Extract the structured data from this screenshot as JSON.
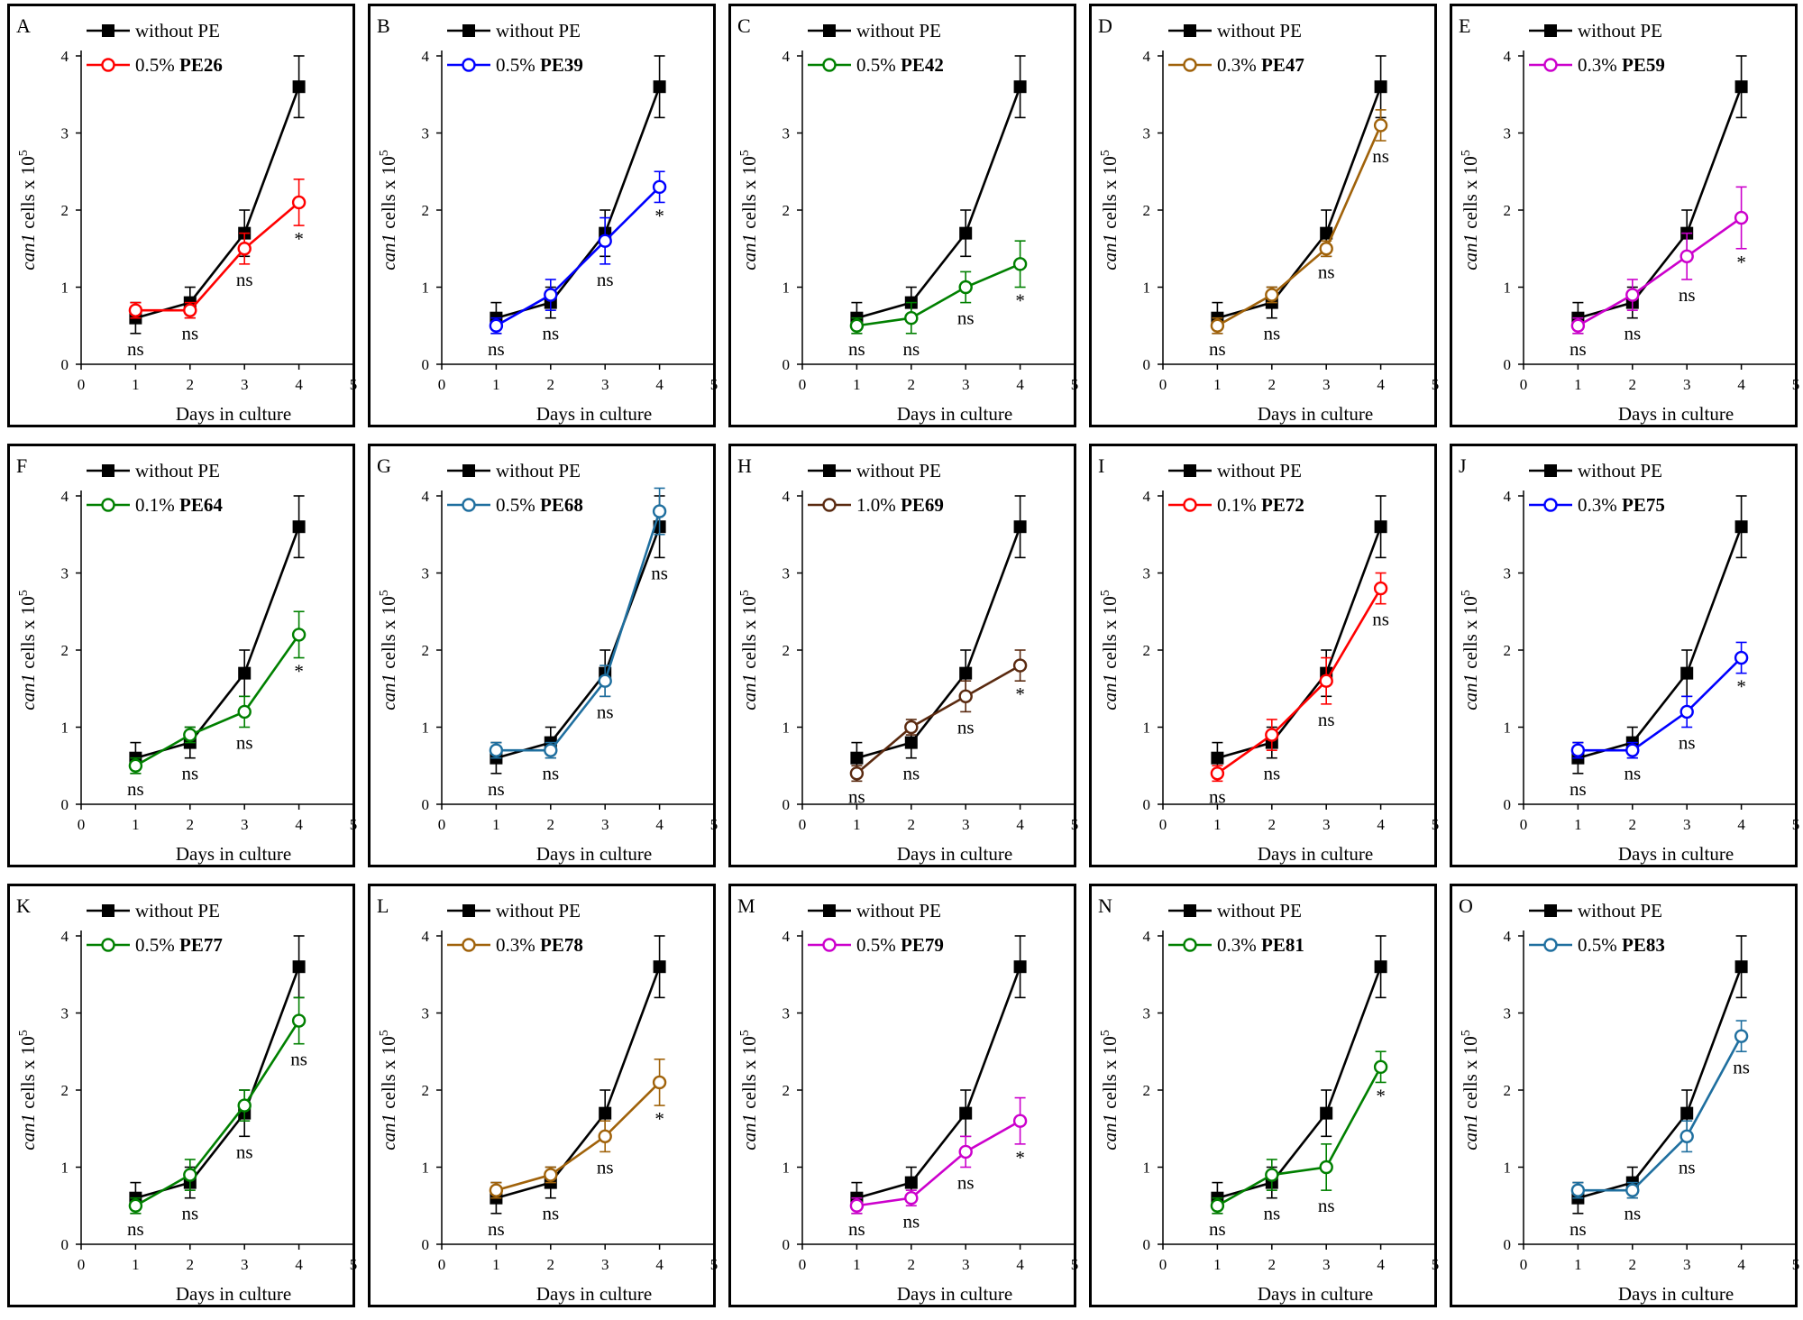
{
  "common": {
    "xlabel": "Days in culture",
    "ylabel_italic": "can1",
    "ylabel_rest": " cells x 10",
    "ylabel_exp": "5",
    "control_name": "without PE",
    "control_color": "#000000",
    "xlim": [
      0,
      5
    ],
    "ylim": [
      0,
      4
    ],
    "x_ticks": [
      "0",
      "1",
      "2",
      "3",
      "4",
      "5"
    ],
    "y_ticks": [
      "0",
      "1",
      "2",
      "3",
      "4"
    ]
  },
  "chart_data": [
    {
      "type": "line",
      "panel_label": "A",
      "series": [
        {
          "name": "without PE",
          "marker": "filled-square",
          "color": "#000000",
          "x": [
            1,
            2,
            3,
            4
          ],
          "y": [
            0.6,
            0.8,
            1.7,
            3.6
          ],
          "err": [
            0.2,
            0.2,
            0.3,
            0.4
          ]
        },
        {
          "name_prefix": "0.5%",
          "name_bold": "PE26",
          "marker": "open-circle",
          "color": "#ff0000",
          "x": [
            1,
            2,
            3,
            4
          ],
          "y": [
            0.7,
            0.7,
            1.5,
            2.1
          ],
          "err": [
            0.1,
            0.1,
            0.2,
            0.3
          ]
        }
      ],
      "annotations": [
        {
          "x": 1,
          "text": "ns"
        },
        {
          "x": 2,
          "text": "ns"
        },
        {
          "x": 3,
          "text": "ns"
        },
        {
          "x": 4,
          "text": "*"
        }
      ]
    },
    {
      "type": "line",
      "panel_label": "B",
      "series": [
        {
          "name": "without PE",
          "marker": "filled-square",
          "color": "#000000",
          "x": [
            1,
            2,
            3,
            4
          ],
          "y": [
            0.6,
            0.8,
            1.7,
            3.6
          ],
          "err": [
            0.2,
            0.2,
            0.3,
            0.4
          ]
        },
        {
          "name_prefix": "0.5%",
          "name_bold": "PE39",
          "marker": "open-circle",
          "color": "#0000ff",
          "x": [
            1,
            2,
            3,
            4
          ],
          "y": [
            0.5,
            0.9,
            1.6,
            2.3
          ],
          "err": [
            0.1,
            0.2,
            0.3,
            0.2
          ]
        }
      ],
      "annotations": [
        {
          "x": 1,
          "text": "ns"
        },
        {
          "x": 2,
          "text": "ns"
        },
        {
          "x": 3,
          "text": "ns"
        },
        {
          "x": 4,
          "text": "*"
        }
      ]
    },
    {
      "type": "line",
      "panel_label": "C",
      "series": [
        {
          "name": "without PE",
          "marker": "filled-square",
          "color": "#000000",
          "x": [
            1,
            2,
            3,
            4
          ],
          "y": [
            0.6,
            0.8,
            1.7,
            3.6
          ],
          "err": [
            0.2,
            0.2,
            0.3,
            0.4
          ]
        },
        {
          "name_prefix": "0.5%",
          "name_bold": "PE42",
          "marker": "open-circle",
          "color": "#008000",
          "x": [
            1,
            2,
            3,
            4
          ],
          "y": [
            0.5,
            0.6,
            1.0,
            1.3
          ],
          "err": [
            0.1,
            0.2,
            0.2,
            0.3
          ]
        }
      ],
      "annotations": [
        {
          "x": 1,
          "text": "ns"
        },
        {
          "x": 2,
          "text": "ns"
        },
        {
          "x": 3,
          "text": "ns"
        },
        {
          "x": 4,
          "text": "*"
        }
      ]
    },
    {
      "type": "line",
      "panel_label": "D",
      "series": [
        {
          "name": "without PE",
          "marker": "filled-square",
          "color": "#000000",
          "x": [
            1,
            2,
            3,
            4
          ],
          "y": [
            0.6,
            0.8,
            1.7,
            3.6
          ],
          "err": [
            0.2,
            0.2,
            0.3,
            0.4
          ]
        },
        {
          "name_prefix": "0.3%",
          "name_bold": "PE47",
          "marker": "open-circle",
          "color": "#a0620a",
          "x": [
            1,
            2,
            3,
            4
          ],
          "y": [
            0.5,
            0.9,
            1.5,
            3.1
          ],
          "err": [
            0.1,
            0.1,
            0.1,
            0.2
          ]
        }
      ],
      "annotations": [
        {
          "x": 1,
          "text": "ns"
        },
        {
          "x": 2,
          "text": "ns"
        },
        {
          "x": 3,
          "text": "ns"
        },
        {
          "x": 4,
          "text": "ns"
        }
      ]
    },
    {
      "type": "line",
      "panel_label": "E",
      "series": [
        {
          "name": "without PE",
          "marker": "filled-square",
          "color": "#000000",
          "x": [
            1,
            2,
            3,
            4
          ],
          "y": [
            0.6,
            0.8,
            1.7,
            3.6
          ],
          "err": [
            0.2,
            0.2,
            0.3,
            0.4
          ]
        },
        {
          "name_prefix": "0.3%",
          "name_bold": "PE59",
          "marker": "open-circle",
          "color": "#cc00cc",
          "x": [
            1,
            2,
            3,
            4
          ],
          "y": [
            0.5,
            0.9,
            1.4,
            1.9
          ],
          "err": [
            0.1,
            0.2,
            0.3,
            0.4
          ]
        }
      ],
      "annotations": [
        {
          "x": 1,
          "text": "ns"
        },
        {
          "x": 2,
          "text": "ns"
        },
        {
          "x": 3,
          "text": "ns"
        },
        {
          "x": 4,
          "text": "*"
        }
      ]
    },
    {
      "type": "line",
      "panel_label": "F",
      "series": [
        {
          "name": "without PE",
          "marker": "filled-square",
          "color": "#000000",
          "x": [
            1,
            2,
            3,
            4
          ],
          "y": [
            0.6,
            0.8,
            1.7,
            3.6
          ],
          "err": [
            0.2,
            0.2,
            0.3,
            0.4
          ]
        },
        {
          "name_prefix": "0.1%",
          "name_bold": "PE64",
          "marker": "open-circle",
          "color": "#008000",
          "x": [
            1,
            2,
            3,
            4
          ],
          "y": [
            0.5,
            0.9,
            1.2,
            2.2
          ],
          "err": [
            0.1,
            0.1,
            0.2,
            0.3
          ]
        }
      ],
      "annotations": [
        {
          "x": 1,
          "text": "ns"
        },
        {
          "x": 2,
          "text": "ns"
        },
        {
          "x": 3,
          "text": "ns"
        },
        {
          "x": 4,
          "text": "*"
        }
      ]
    },
    {
      "type": "line",
      "panel_label": "G",
      "series": [
        {
          "name": "without PE",
          "marker": "filled-square",
          "color": "#000000",
          "x": [
            1,
            2,
            3,
            4
          ],
          "y": [
            0.6,
            0.8,
            1.7,
            3.6
          ],
          "err": [
            0.2,
            0.2,
            0.3,
            0.4
          ]
        },
        {
          "name_prefix": "0.5%",
          "name_bold": "PE68",
          "marker": "open-circle",
          "color": "#1f6f9f",
          "x": [
            1,
            2,
            3,
            4
          ],
          "y": [
            0.7,
            0.7,
            1.6,
            3.8
          ],
          "err": [
            0.1,
            0.1,
            0.2,
            0.3
          ]
        }
      ],
      "annotations": [
        {
          "x": 1,
          "text": "ns"
        },
        {
          "x": 2,
          "text": "ns"
        },
        {
          "x": 3,
          "text": "ns"
        },
        {
          "x": 4,
          "text": "ns"
        }
      ]
    },
    {
      "type": "line",
      "panel_label": "H",
      "series": [
        {
          "name": "without PE",
          "marker": "filled-square",
          "color": "#000000",
          "x": [
            1,
            2,
            3,
            4
          ],
          "y": [
            0.6,
            0.8,
            1.7,
            3.6
          ],
          "err": [
            0.2,
            0.2,
            0.3,
            0.4
          ]
        },
        {
          "name_prefix": "1.0%",
          "name_bold": "PE69",
          "marker": "open-circle",
          "color": "#5a2a10",
          "x": [
            1,
            2,
            3,
            4
          ],
          "y": [
            0.4,
            1.0,
            1.4,
            1.8
          ],
          "err": [
            0.1,
            0.1,
            0.2,
            0.2
          ]
        }
      ],
      "annotations": [
        {
          "x": 1,
          "text": "ns"
        },
        {
          "x": 2,
          "text": "ns"
        },
        {
          "x": 3,
          "text": "ns"
        },
        {
          "x": 4,
          "text": "*"
        }
      ]
    },
    {
      "type": "line",
      "panel_label": "I",
      "series": [
        {
          "name": "without PE",
          "marker": "filled-square",
          "color": "#000000",
          "x": [
            1,
            2,
            3,
            4
          ],
          "y": [
            0.6,
            0.8,
            1.7,
            3.6
          ],
          "err": [
            0.2,
            0.2,
            0.3,
            0.4
          ]
        },
        {
          "name_prefix": "0.1%",
          "name_bold": "PE72",
          "marker": "open-circle",
          "color": "#ff0000",
          "x": [
            1,
            2,
            3,
            4
          ],
          "y": [
            0.4,
            0.9,
            1.6,
            2.8
          ],
          "err": [
            0.1,
            0.2,
            0.3,
            0.2
          ]
        }
      ],
      "annotations": [
        {
          "x": 1,
          "text": "ns"
        },
        {
          "x": 2,
          "text": "ns"
        },
        {
          "x": 3,
          "text": "ns"
        },
        {
          "x": 4,
          "text": "ns"
        }
      ]
    },
    {
      "type": "line",
      "panel_label": "J",
      "series": [
        {
          "name": "without PE",
          "marker": "filled-square",
          "color": "#000000",
          "x": [
            1,
            2,
            3,
            4
          ],
          "y": [
            0.6,
            0.8,
            1.7,
            3.6
          ],
          "err": [
            0.2,
            0.2,
            0.3,
            0.4
          ]
        },
        {
          "name_prefix": "0.3%",
          "name_bold": "PE75",
          "marker": "open-circle",
          "color": "#0000ff",
          "x": [
            1,
            2,
            3,
            4
          ],
          "y": [
            0.7,
            0.7,
            1.2,
            1.9
          ],
          "err": [
            0.1,
            0.1,
            0.2,
            0.2
          ]
        }
      ],
      "annotations": [
        {
          "x": 1,
          "text": "ns"
        },
        {
          "x": 2,
          "text": "ns"
        },
        {
          "x": 3,
          "text": "ns"
        },
        {
          "x": 4,
          "text": "*"
        }
      ]
    },
    {
      "type": "line",
      "panel_label": "K",
      "series": [
        {
          "name": "without PE",
          "marker": "filled-square",
          "color": "#000000",
          "x": [
            1,
            2,
            3,
            4
          ],
          "y": [
            0.6,
            0.8,
            1.7,
            3.6
          ],
          "err": [
            0.2,
            0.2,
            0.3,
            0.4
          ]
        },
        {
          "name_prefix": "0.5%",
          "name_bold": "PE77",
          "marker": "open-circle",
          "color": "#008000",
          "x": [
            1,
            2,
            3,
            4
          ],
          "y": [
            0.5,
            0.9,
            1.8,
            2.9
          ],
          "err": [
            0.1,
            0.2,
            0.2,
            0.3
          ]
        }
      ],
      "annotations": [
        {
          "x": 1,
          "text": "ns"
        },
        {
          "x": 2,
          "text": "ns"
        },
        {
          "x": 3,
          "text": "ns"
        },
        {
          "x": 4,
          "text": "ns"
        }
      ]
    },
    {
      "type": "line",
      "panel_label": "L",
      "series": [
        {
          "name": "without PE",
          "marker": "filled-square",
          "color": "#000000",
          "x": [
            1,
            2,
            3,
            4
          ],
          "y": [
            0.6,
            0.8,
            1.7,
            3.6
          ],
          "err": [
            0.2,
            0.2,
            0.3,
            0.4
          ]
        },
        {
          "name_prefix": "0.3%",
          "name_bold": "PE78",
          "marker": "open-circle",
          "color": "#a0620a",
          "x": [
            1,
            2,
            3,
            4
          ],
          "y": [
            0.7,
            0.9,
            1.4,
            2.1
          ],
          "err": [
            0.1,
            0.1,
            0.2,
            0.3
          ]
        }
      ],
      "annotations": [
        {
          "x": 1,
          "text": "ns"
        },
        {
          "x": 2,
          "text": "ns"
        },
        {
          "x": 3,
          "text": "ns"
        },
        {
          "x": 4,
          "text": "*"
        }
      ]
    },
    {
      "type": "line",
      "panel_label": "M",
      "series": [
        {
          "name": "without PE",
          "marker": "filled-square",
          "color": "#000000",
          "x": [
            1,
            2,
            3,
            4
          ],
          "y": [
            0.6,
            0.8,
            1.7,
            3.6
          ],
          "err": [
            0.2,
            0.2,
            0.3,
            0.4
          ]
        },
        {
          "name_prefix": "0.5%",
          "name_bold": "PE79",
          "marker": "open-circle",
          "color": "#cc00cc",
          "x": [
            1,
            2,
            3,
            4
          ],
          "y": [
            0.5,
            0.6,
            1.2,
            1.6
          ],
          "err": [
            0.1,
            0.1,
            0.2,
            0.3
          ]
        }
      ],
      "annotations": [
        {
          "x": 1,
          "text": "ns"
        },
        {
          "x": 2,
          "text": "ns"
        },
        {
          "x": 3,
          "text": "ns"
        },
        {
          "x": 4,
          "text": "*"
        }
      ]
    },
    {
      "type": "line",
      "panel_label": "N",
      "series": [
        {
          "name": "without PE",
          "marker": "filled-square",
          "color": "#000000",
          "x": [
            1,
            2,
            3,
            4
          ],
          "y": [
            0.6,
            0.8,
            1.7,
            3.6
          ],
          "err": [
            0.2,
            0.2,
            0.3,
            0.4
          ]
        },
        {
          "name_prefix": "0.3%",
          "name_bold": "PE81",
          "marker": "open-circle",
          "color": "#008000",
          "x": [
            1,
            2,
            3,
            4
          ],
          "y": [
            0.5,
            0.9,
            1.0,
            2.3
          ],
          "err": [
            0.1,
            0.2,
            0.3,
            0.2
          ]
        }
      ],
      "annotations": [
        {
          "x": 1,
          "text": "ns"
        },
        {
          "x": 2,
          "text": "ns"
        },
        {
          "x": 3,
          "text": "ns"
        },
        {
          "x": 4,
          "text": "*"
        }
      ]
    },
    {
      "type": "line",
      "panel_label": "O",
      "series": [
        {
          "name": "without PE",
          "marker": "filled-square",
          "color": "#000000",
          "x": [
            1,
            2,
            3,
            4
          ],
          "y": [
            0.6,
            0.8,
            1.7,
            3.6
          ],
          "err": [
            0.2,
            0.2,
            0.3,
            0.4
          ]
        },
        {
          "name_prefix": "0.5%",
          "name_bold": "PE83",
          "marker": "open-circle",
          "color": "#1f6f9f",
          "x": [
            1,
            2,
            3,
            4
          ],
          "y": [
            0.7,
            0.7,
            1.4,
            2.7
          ],
          "err": [
            0.1,
            0.1,
            0.2,
            0.2
          ]
        }
      ],
      "annotations": [
        {
          "x": 1,
          "text": "ns"
        },
        {
          "x": 2,
          "text": "ns"
        },
        {
          "x": 3,
          "text": "ns"
        },
        {
          "x": 4,
          "text": "ns"
        }
      ]
    }
  ]
}
